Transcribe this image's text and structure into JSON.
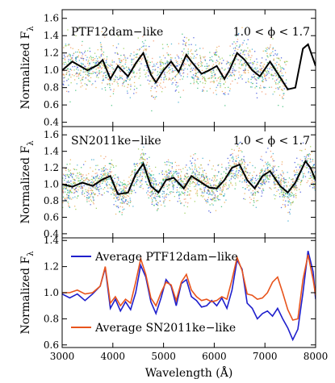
{
  "colors": {
    "ptf_avg": "#1f1fcc",
    "sn_avg": "#e8541c",
    "mean": "#000000",
    "scatter": [
      "#2a3fd6",
      "#2aa0c8",
      "#28b86a",
      "#8cc83c",
      "#e6a33a",
      "#f08a5a"
    ]
  },
  "chart_data": [
    {
      "type": "scatter",
      "panel": "top",
      "ylabel": "Normalized F",
      "ylabel_sub": "λ",
      "ylim": [
        0.35,
        1.7
      ],
      "yticks": [
        0.4,
        0.6,
        0.8,
        1.0,
        1.2,
        1.4,
        1.6
      ],
      "annotation_left": "PTF12dam−like",
      "annotation_right": "1.0 < ϕ < 1.7",
      "mean_curve": {
        "x": [
          3000,
          3200,
          3500,
          3700,
          3800,
          3950,
          4100,
          4300,
          4450,
          4600,
          4750,
          4850,
          5000,
          5150,
          5300,
          5450,
          5550,
          5750,
          5900,
          6050,
          6200,
          6300,
          6450,
          6600,
          6750,
          6900,
          7100,
          7300,
          7450,
          7600,
          7750,
          7850,
          8000
        ],
        "y": [
          1.0,
          1.1,
          1.0,
          1.06,
          1.12,
          0.9,
          1.05,
          0.93,
          1.08,
          1.2,
          0.95,
          0.86,
          1.0,
          1.1,
          0.98,
          1.18,
          1.1,
          0.96,
          1.0,
          1.05,
          0.9,
          1.0,
          1.2,
          1.12,
          1.0,
          0.93,
          1.1,
          0.92,
          0.78,
          0.8,
          1.25,
          1.3,
          1.05
        ]
      },
      "scatter_x_range": [
        3000,
        7450
      ]
    },
    {
      "type": "scatter",
      "panel": "middle",
      "ylabel": "Normalized F",
      "ylabel_sub": "λ",
      "ylim": [
        0.35,
        1.7
      ],
      "yticks": [
        0.4,
        0.6,
        0.8,
        1.0,
        1.2,
        1.4,
        1.6
      ],
      "annotation_left": "SN2011ke−like",
      "annotation_right": "1.0 < ϕ < 1.7",
      "mean_curve": {
        "x": [
          3000,
          3200,
          3400,
          3600,
          3800,
          3950,
          4100,
          4300,
          4450,
          4600,
          4750,
          4900,
          5050,
          5200,
          5400,
          5550,
          5750,
          5900,
          6050,
          6200,
          6350,
          6500,
          6650,
          6800,
          6950,
          7100,
          7300,
          7450,
          7600,
          7800,
          7900,
          8000
        ],
        "y": [
          1.0,
          0.97,
          1.02,
          0.98,
          1.06,
          1.1,
          0.88,
          0.9,
          1.12,
          1.25,
          0.98,
          0.9,
          1.05,
          1.08,
          0.95,
          1.1,
          1.02,
          0.96,
          0.95,
          1.05,
          1.2,
          1.24,
          1.05,
          0.95,
          1.1,
          1.16,
          0.98,
          0.9,
          1.02,
          1.28,
          1.2,
          1.05
        ]
      },
      "scatter_x_range": [
        3000,
        8000
      ]
    },
    {
      "type": "line",
      "panel": "bottom",
      "xlabel": "Wavelength (Å)",
      "ylabel": "Normalized F",
      "ylabel_sub": "λ",
      "xlim": [
        3000,
        8000
      ],
      "xticks": [
        3000,
        4000,
        5000,
        6000,
        7000,
        8000
      ],
      "ylim": [
        0.58,
        1.42
      ],
      "yticks": [
        0.6,
        0.8,
        1.0,
        1.2,
        1.4
      ],
      "legend_top": "Average PTF12dam−like",
      "legend_bottom": "Average SN2011ke−like",
      "series": [
        {
          "name": "Average PTF12dam−like",
          "x": [
            3000,
            3150,
            3300,
            3450,
            3600,
            3750,
            3850,
            3950,
            4050,
            4150,
            4250,
            4350,
            4450,
            4550,
            4650,
            4750,
            4850,
            4950,
            5050,
            5150,
            5250,
            5350,
            5450,
            5550,
            5650,
            5750,
            5850,
            5950,
            6050,
            6150,
            6250,
            6350,
            6450,
            6550,
            6650,
            6750,
            6850,
            6950,
            7050,
            7150,
            7250,
            7350,
            7450,
            7550,
            7650,
            7750,
            7850,
            7950,
            8000
          ],
          "y": [
            0.99,
            0.96,
            0.99,
            0.94,
            0.99,
            1.05,
            1.19,
            0.88,
            0.95,
            0.86,
            0.93,
            0.87,
            1.0,
            1.21,
            1.12,
            0.93,
            0.84,
            0.96,
            1.1,
            1.05,
            0.9,
            1.07,
            1.1,
            0.97,
            0.94,
            0.89,
            0.9,
            0.94,
            0.9,
            0.96,
            0.88,
            1.02,
            1.25,
            1.18,
            0.92,
            0.88,
            0.8,
            0.84,
            0.86,
            0.82,
            0.88,
            0.8,
            0.73,
            0.64,
            0.72,
            1.0,
            1.32,
            1.16,
            0.95
          ]
        },
        {
          "name": "Average SN2011ke−like",
          "x": [
            3000,
            3150,
            3300,
            3450,
            3600,
            3750,
            3850,
            3950,
            4050,
            4150,
            4250,
            4350,
            4450,
            4550,
            4650,
            4750,
            4850,
            4950,
            5050,
            5150,
            5250,
            5350,
            5450,
            5550,
            5650,
            5750,
            5850,
            5950,
            6050,
            6150,
            6250,
            6350,
            6450,
            6550,
            6650,
            6750,
            6850,
            6950,
            7050,
            7150,
            7250,
            7350,
            7450,
            7550,
            7650,
            7750,
            7850,
            7950,
            8000
          ],
          "y": [
            1.0,
            1.0,
            1.02,
            0.99,
            1.0,
            1.05,
            1.2,
            0.92,
            0.97,
            0.9,
            0.95,
            0.92,
            1.08,
            1.26,
            1.14,
            0.96,
            0.9,
            1.0,
            1.08,
            1.06,
            0.94,
            1.08,
            1.14,
            1.02,
            0.97,
            0.94,
            0.95,
            0.93,
            0.94,
            0.97,
            0.95,
            1.1,
            1.27,
            1.17,
            0.99,
            0.98,
            0.95,
            0.96,
            1.0,
            1.08,
            1.12,
            1.0,
            0.87,
            0.79,
            0.8,
            1.1,
            1.29,
            1.1,
            0.98
          ]
        }
      ]
    }
  ]
}
